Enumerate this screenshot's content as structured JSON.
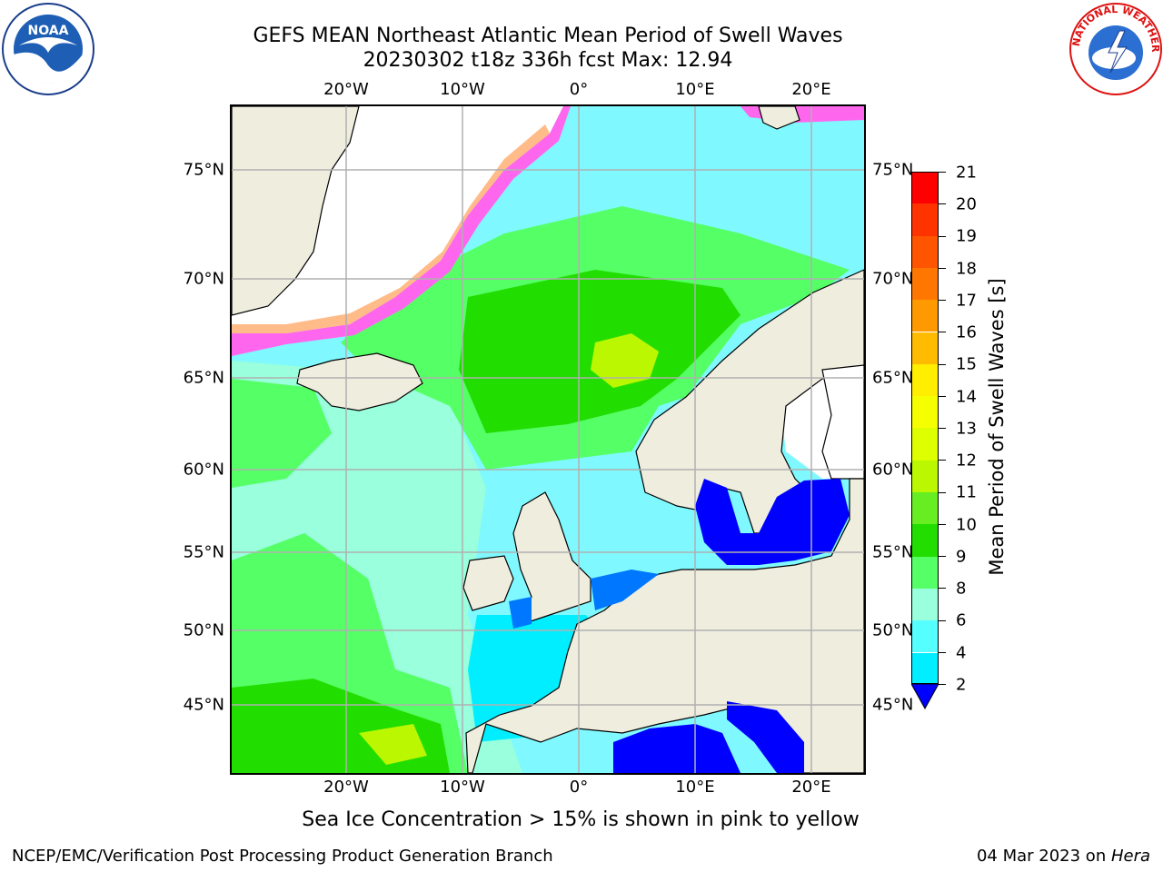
{
  "title": {
    "line1": "GEFS MEAN Northeast Atlantic Mean Period of Swell Waves",
    "line2": "20230302 t18z 336h fcst   Max: 12.94"
  },
  "map": {
    "lon_labels": [
      "20°W",
      "10°W",
      "0°",
      "10°E",
      "20°E"
    ],
    "lat_labels": [
      "75°N",
      "70°N",
      "65°N",
      "60°N",
      "55°N",
      "50°N",
      "45°N"
    ],
    "colors": {
      "land": "#efedde",
      "ice_free": "#ffffff",
      "coast": "#000000",
      "grid": "#b0b0b0"
    }
  },
  "colorbar": {
    "label": "Mean Period of Swell Waves [s]",
    "tick_labels": [
      "21",
      "20",
      "19",
      "18",
      "17",
      "16",
      "15",
      "14",
      "13",
      "12",
      "11",
      "10",
      "9",
      "8",
      "6",
      "4",
      "2"
    ],
    "colors": [
      "#ff0000",
      "#ff3300",
      "#ff5500",
      "#ff7700",
      "#ff9900",
      "#ffbb00",
      "#ffee00",
      "#f5ff00",
      "#ddff00",
      "#bbf700",
      "#66ee22",
      "#22dd00",
      "#55ff66",
      "#99ffdd",
      "#55ffff",
      "#00eeff",
      "#0077ff"
    ],
    "extend_color": "#0000ff"
  },
  "note": "Sea Ice Concentration > 15% is shown in pink to yellow",
  "footer": {
    "left": "NCEP/EMC/Verification Post Processing Product Generation Branch",
    "right_date": "04 Mar 2023 on ",
    "right_host": "Hera"
  },
  "logos": {
    "left": "NOAA",
    "right": "NATIONAL WEATHER SERVICE"
  }
}
